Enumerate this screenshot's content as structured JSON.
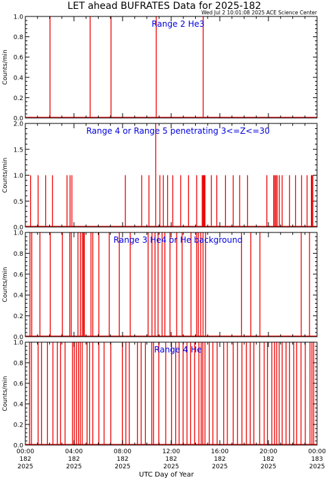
{
  "title": "LET ahead BUFRATES Data for 2025-182",
  "timestamp": "Wed Jul  2 10:01:08 2025 ACE Science Center",
  "xlabel": "UTC Day of Year",
  "colors": {
    "data": "#ee0000",
    "label": "#0000dd",
    "axis": "#000000"
  },
  "x_ticks": [
    {
      "hours": 0,
      "time": "00:00",
      "doy": "182",
      "year": "2025"
    },
    {
      "hours": 4,
      "time": "04:00",
      "doy": "182",
      "year": "2025"
    },
    {
      "hours": 8,
      "time": "08:00",
      "doy": "182",
      "year": "2025"
    },
    {
      "hours": 12,
      "time": "12:00",
      "doy": "182",
      "year": "2025"
    },
    {
      "hours": 16,
      "time": "16:00",
      "doy": "182",
      "year": "2025"
    },
    {
      "hours": 20,
      "time": "20:00",
      "doy": "182",
      "year": "2025"
    },
    {
      "hours": 24,
      "time": "00:00",
      "doy": "183",
      "year": "2025"
    }
  ],
  "chart_data": [
    {
      "type": "line",
      "label": "Range 2 He3",
      "ylabel": "Counts/min",
      "ylim": [
        0,
        1.0
      ],
      "yticks": [
        "0.0",
        "0.2",
        "0.4",
        "0.6",
        "0.8",
        "1.0"
      ],
      "xlim_hours": [
        0,
        24
      ],
      "x_hours": [
        2.03,
        5.33,
        7.05,
        10.77,
        14.63
      ],
      "values": [
        1,
        1,
        1,
        1,
        1
      ]
    },
    {
      "type": "line",
      "label": "Range 4 or Range 5 penetrating 3<=Z<=30",
      "ylabel": "Counts/min",
      "ylim": [
        0,
        2.0
      ],
      "yticks": [
        "0.0",
        "0.5",
        "1.0",
        "1.5",
        "2.0"
      ],
      "xlim_hours": [
        0,
        24
      ],
      "x_hours": [
        0.43,
        1.05,
        1.67,
        2.23,
        3.43,
        3.68,
        3.83,
        8.23,
        9.57,
        10.17,
        10.73,
        11.07,
        11.35,
        11.7,
        12.13,
        12.78,
        13.43,
        14.1,
        14.55,
        14.63,
        14.68,
        14.73,
        14.78,
        15.3,
        15.75,
        16.47,
        17.1,
        17.63,
        18.28,
        19.87,
        20.43,
        20.53,
        20.62,
        20.72,
        20.9,
        21.13,
        21.73,
        22.23,
        22.73,
        23.18,
        23.53,
        23.58,
        23.65
      ],
      "values": [
        1,
        1,
        1,
        1,
        1,
        1,
        1,
        1,
        1,
        1,
        2,
        1,
        1,
        1,
        1,
        1,
        1,
        1,
        1,
        1,
        1,
        1,
        1,
        1,
        1,
        1,
        1,
        1,
        1,
        1,
        1,
        1,
        1,
        1,
        1,
        1,
        1,
        1,
        1,
        1,
        1,
        1,
        1
      ]
    },
    {
      "type": "line",
      "label": "Range 3 He4 or He background",
      "ylabel": "Counts/min",
      "ylim": [
        0,
        1.0
      ],
      "yticks": [
        "0.0",
        "0.2",
        "0.4",
        "0.6",
        "0.8",
        "1.0"
      ],
      "xlim_hours": [
        0,
        24
      ],
      "x_hours": [
        0.38,
        0.53,
        1.2,
        2.05,
        3.05,
        3.65,
        3.78,
        4.33,
        4.53,
        4.68,
        4.78,
        4.85,
        5.4,
        5.55,
        6.05,
        6.9,
        7.73,
        8.63,
        10.1,
        10.42,
        10.67,
        10.92,
        11.25,
        11.48,
        11.9,
        12.45,
        12.9,
        13.63,
        14.1,
        14.23,
        14.43,
        14.62,
        14.83,
        17.78,
        18.55,
        19.3,
        22.7,
        23.38
      ],
      "values": [
        1,
        1,
        1,
        1,
        1,
        1,
        1,
        1,
        1,
        1,
        1,
        1,
        1,
        1,
        1,
        1,
        1,
        1,
        1,
        1,
        1,
        1,
        1,
        1,
        1,
        1,
        1,
        1,
        1,
        1,
        1,
        1,
        1,
        1,
        1,
        1,
        1,
        1
      ]
    },
    {
      "type": "line",
      "label": "Range 4 He",
      "ylabel": "Counts/min",
      "ylim": [
        0,
        1.0
      ],
      "yticks": [
        "0.0",
        "0.2",
        "0.4",
        "0.6",
        "0.8",
        "1.0"
      ],
      "xlim_hours": [
        0,
        24
      ],
      "x_hours": [
        0.35,
        0.5,
        1.05,
        1.33,
        1.82,
        2.27,
        2.63,
        2.9,
        3.27,
        3.88,
        4.03,
        4.2,
        4.37,
        4.52,
        4.68,
        5.08,
        5.28,
        5.55,
        6.05,
        6.48,
        7.03,
        7.98,
        8.27,
        8.55,
        9.22,
        9.53,
        9.88,
        10.4,
        10.55,
        10.98,
        11.55,
        12.03,
        12.37,
        12.65,
        12.98,
        13.3,
        13.6,
        13.93,
        14.28,
        14.47,
        14.6,
        14.78,
        15.13,
        15.43,
        15.78,
        16.32,
        16.62,
        17.1,
        17.45,
        17.82,
        18.18,
        18.5,
        18.8,
        19.28,
        19.65,
        19.92,
        20.28,
        20.5,
        20.68,
        20.88,
        21.13,
        21.45,
        21.73,
        22.08,
        22.32,
        22.68,
        23.03,
        23.42,
        23.58,
        23.72
      ],
      "values": [
        1,
        1,
        1,
        1,
        1,
        1,
        1,
        1,
        1,
        1,
        1,
        1,
        1,
        1,
        1,
        1,
        1,
        1,
        1,
        1,
        1,
        1,
        1,
        1,
        1,
        1,
        1,
        1,
        1,
        1,
        1,
        1,
        1,
        1,
        1,
        1,
        1,
        1,
        1,
        1,
        1,
        1,
        1,
        1,
        1,
        1,
        1,
        1,
        1,
        1,
        1,
        1,
        1,
        1,
        1,
        1,
        1,
        1,
        1,
        1,
        1,
        1,
        1,
        1,
        1,
        1,
        1,
        1,
        1,
        1
      ]
    }
  ]
}
